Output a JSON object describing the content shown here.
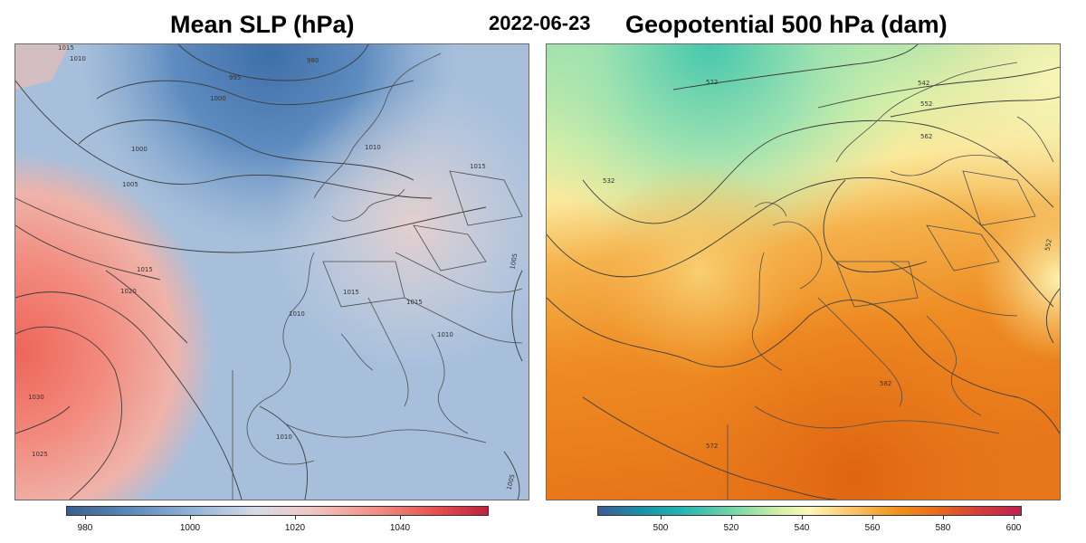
{
  "header": {
    "left_title": "Mean SLP (hPa)",
    "date": "2022-06-23",
    "right_title": "Geopotential 500 hPa (dam)"
  },
  "slp_map": {
    "variable": "Mean sea level pressure",
    "unit": "hPa",
    "contour_labels": [
      "1015",
      "1010",
      "980",
      "995",
      "1000",
      "1000",
      "1010",
      "1015",
      "1005",
      "1015",
      "1020",
      "1015",
      "1010",
      "1015",
      "1010",
      "1030",
      "1025",
      "1010",
      "1005",
      "1005"
    ],
    "colorbar": {
      "ticks": [
        "980",
        "1000",
        "1020",
        "1040"
      ],
      "colors": [
        "#3a5f8c",
        "#5c8ab8",
        "#93b4d6",
        "#d6dbe4",
        "#efc7c2",
        "#f2958a",
        "#e5504f",
        "#c0203e"
      ]
    }
  },
  "z500_map": {
    "variable": "Geopotential height 500 hPa",
    "unit": "dam",
    "contour_labels": [
      "522",
      "542",
      "552",
      "562",
      "532",
      "552",
      "582",
      "572"
    ],
    "colorbar": {
      "ticks": [
        "500",
        "520",
        "540",
        "560",
        "580",
        "600"
      ],
      "colors": [
        "#3d5b95",
        "#1c8fa7",
        "#24b6b0",
        "#7ed8a6",
        "#d5efa8",
        "#fdf7b9",
        "#f9c56a",
        "#f0961f",
        "#e86c1c",
        "#d53f3c",
        "#c2204d"
      ]
    }
  }
}
